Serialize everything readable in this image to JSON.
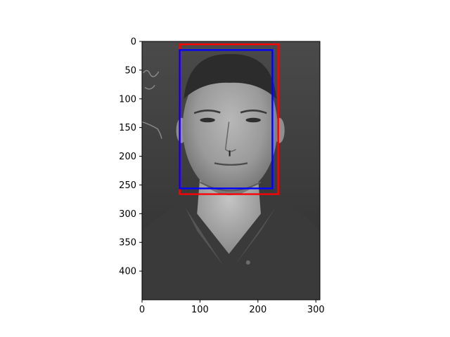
{
  "chart_data": {
    "type": "image",
    "title": "",
    "xlabel": "",
    "ylabel": "",
    "image_content": "grayscale photograph of a man's face and upper torso",
    "image_extent": {
      "width": 307,
      "height": 450
    },
    "x_axis": {
      "ticks": [
        0,
        100,
        200,
        300
      ],
      "labels": [
        "0",
        "100",
        "200",
        "300"
      ]
    },
    "y_axis": {
      "ticks": [
        0,
        50,
        100,
        150,
        200,
        250,
        300,
        350,
        400
      ],
      "labels": [
        "0",
        "50",
        "100",
        "150",
        "200",
        "250",
        "300",
        "350",
        "400"
      ],
      "inverted": true
    },
    "boxes": [
      {
        "name": "red-box",
        "color": "#ff0000",
        "x0": 65,
        "y0": 5,
        "x1": 235,
        "y1": 266
      },
      {
        "name": "blue-box",
        "color": "#0000ff",
        "x0": 65,
        "y0": 15,
        "x1": 225,
        "y1": 256
      }
    ]
  },
  "colors": {
    "axis": "#000000",
    "background": "#ffffff"
  }
}
